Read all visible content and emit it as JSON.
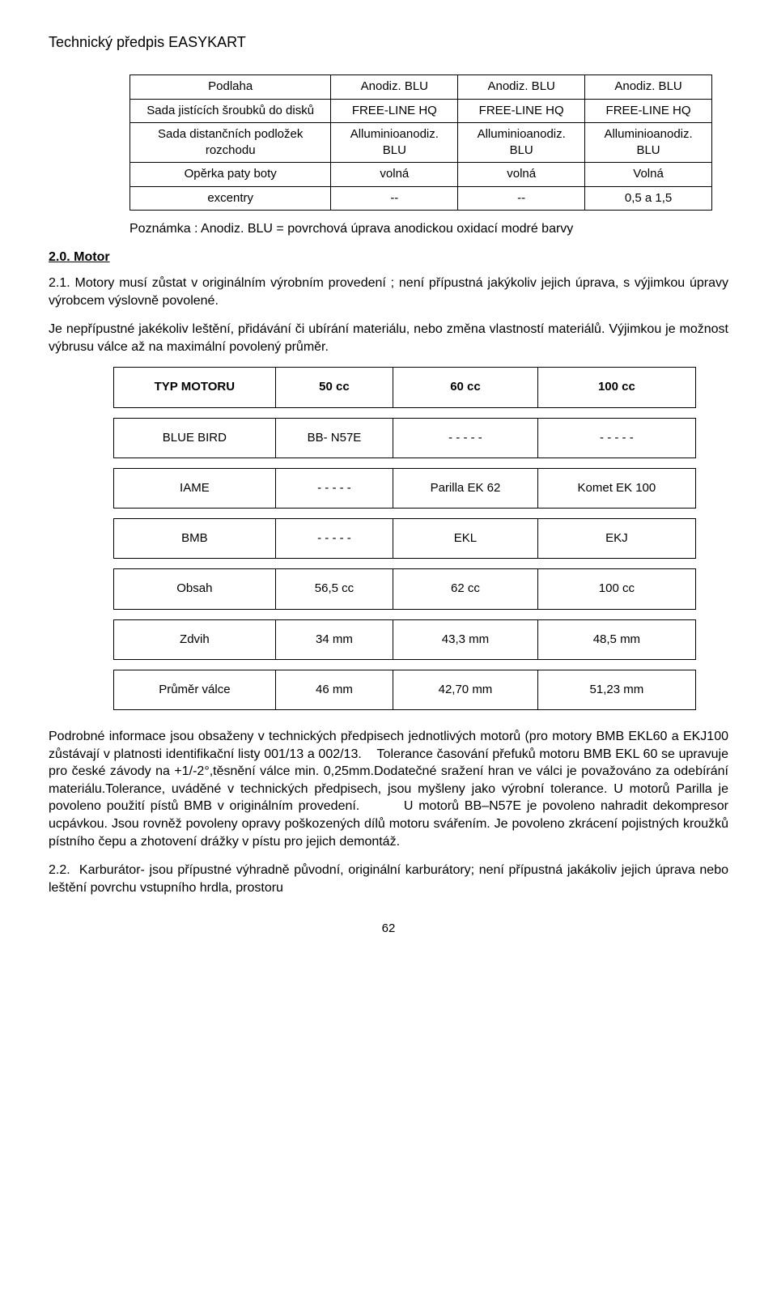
{
  "doc_title": "Technický předpis EASYKART",
  "table1": {
    "rows": [
      {
        "label": "Podlaha",
        "c1": "Anodiz. BLU",
        "c2": "Anodiz. BLU",
        "c3": "Anodiz. BLU"
      },
      {
        "label": "Sada jistících šroubků do disků",
        "c1": "FREE-LINE HQ",
        "c2": "FREE-LINE HQ",
        "c3": "FREE-LINE HQ"
      },
      {
        "label": "Sada distančních podložek rozchodu",
        "c1": "Alluminioanodiz. BLU",
        "c2": "Alluminioanodiz. BLU",
        "c3": "Alluminioanodiz. BLU"
      },
      {
        "label": "Opěrka paty boty",
        "c1": "volná",
        "c2": "volná",
        "c3": "Volná"
      },
      {
        "label": "excentry",
        "c1": "--",
        "c2": "--",
        "c3": "0,5 a 1,5"
      }
    ]
  },
  "note_text": "Poznámka : Anodiz. BLU = povrchová úprava anodickou oxidací modré barvy",
  "section_motor": "2.0. Motor",
  "para_21a": "2.1. Motory musí zůstat v originálním výrobním provedení ; není přípustná jakýkoliv jejich úprava, s výjimkou úpravy výrobcem výslovně povolené.",
  "para_21b": "Je nepřípustné jakékoliv leštění, přidávání či ubírání materiálu, nebo změna vlastností materiálů. Výjimkou je možnost výbrusu válce až na maximální povolený průměr.",
  "table2": {
    "header": {
      "a": "TYP MOTORU",
      "b": "50 cc",
      "c": "60 cc",
      "d": "100 cc"
    },
    "rows": [
      {
        "a": "BLUE BIRD",
        "b": "BB- N57E",
        "c": "- - - - -",
        "d": "- - - - -"
      },
      {
        "a": "IAME",
        "b": "- - - - -",
        "c": "Parilla EK 62",
        "d": "Komet EK 100"
      },
      {
        "a": "BMB",
        "b": "- - - - -",
        "c": "EKL",
        "d": "EKJ"
      },
      {
        "a": "Obsah",
        "b": "56,5 cc",
        "c": "62 cc",
        "d": "100 cc"
      },
      {
        "a": "Zdvih",
        "b": "34 mm",
        "c": "43,3 mm",
        "d": "48,5 mm"
      },
      {
        "a": "Průměr válce",
        "b": "46 mm",
        "c": "42,70 mm",
        "d": "51,23 mm"
      }
    ]
  },
  "para_bottom": "Podrobné informace jsou obsaženy v technických předpisech jednotlivých motorů (pro motory BMB EKL60 a EKJ100 zůstávají v platnosti identifikační listy 001/13 a 002/13.    Tolerance časování přefuků motoru BMB EKL 60 se upravuje pro české závody na +1/-2°,těsnění válce min. 0,25mm.Dodatečné sražení hran ve válci je považováno za odebírání materiálu.Tolerance, uváděné v technických předpisech, jsou myšleny jako výrobní tolerance. U motorů Parilla je povoleno  použití pístů BMB v originálním provedení.        U motorů BB–N57E je povoleno nahradit dekompresor ucpávkou. Jsou rovněž povoleny opravy poškozených dílů motoru svářením. Je povoleno zkrácení pojistných kroužků pístního čepu a  zhotovení drážky v pístu pro jejich demontáž.",
  "para_22": "2.2.  Karburátor- jsou přípustné výhradně původní, originální karburátory; není přípustná jakákoliv jejich úprava nebo leštění povrchu vstupního hrdla, prostoru",
  "page_number": "62"
}
